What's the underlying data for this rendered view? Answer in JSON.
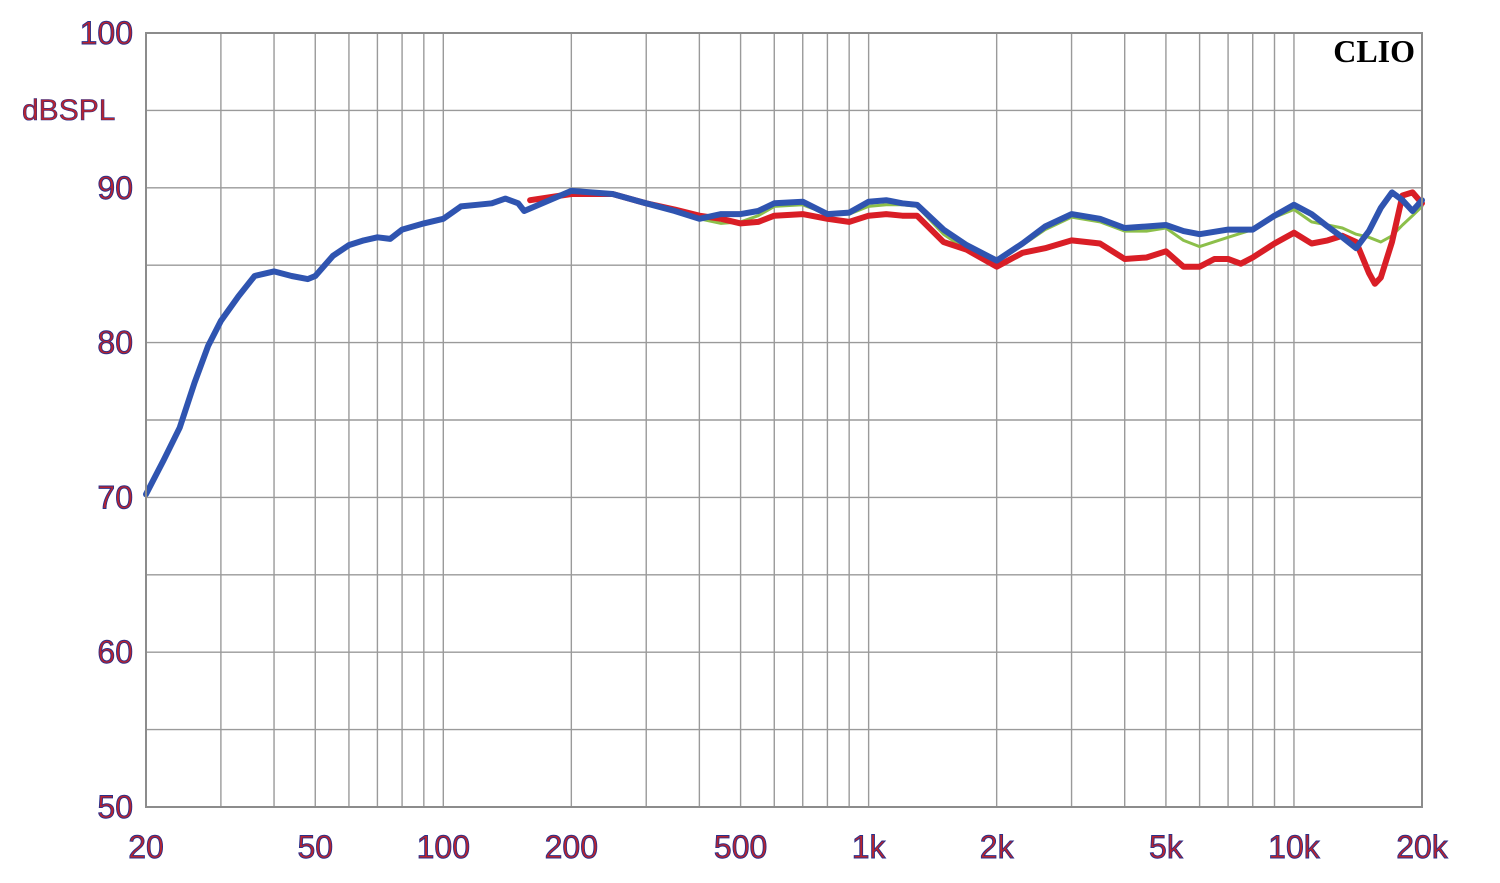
{
  "chart_data": {
    "type": "line",
    "title": "",
    "brand": "CLIO",
    "ylabel": "dBSPL",
    "xlabel": "",
    "x_scale": "log",
    "xlim": [
      20,
      20000
    ],
    "ylim": [
      50,
      100
    ],
    "grid": true,
    "y_ticks": [
      {
        "value": 100,
        "label": "100"
      },
      {
        "value": 90,
        "label": "90"
      },
      {
        "value": 80,
        "label": "80"
      },
      {
        "value": 70,
        "label": "70"
      },
      {
        "value": 60,
        "label": "60"
      },
      {
        "value": 50,
        "label": "50"
      }
    ],
    "x_ticks": [
      {
        "value": 20,
        "label": "20"
      },
      {
        "value": 50,
        "label": "50"
      },
      {
        "value": 100,
        "label": "100"
      },
      {
        "value": 200,
        "label": "200"
      },
      {
        "value": 500,
        "label": "500"
      },
      {
        "value": 1000,
        "label": "1k"
      },
      {
        "value": 2000,
        "label": "2k"
      },
      {
        "value": 5000,
        "label": "5k"
      },
      {
        "value": 10000,
        "label": "10k"
      },
      {
        "value": 20000,
        "label": "20k"
      }
    ],
    "series": [
      {
        "color": "#8cbf4a",
        "width": 3,
        "points": [
          [
            160,
            89.2
          ],
          [
            200,
            89.7
          ],
          [
            250,
            89.6
          ],
          [
            300,
            89.0
          ],
          [
            350,
            88.6
          ],
          [
            400,
            88.0
          ],
          [
            450,
            87.7
          ],
          [
            500,
            87.8
          ],
          [
            550,
            88.2
          ],
          [
            600,
            88.8
          ],
          [
            700,
            88.9
          ],
          [
            800,
            88.3
          ],
          [
            900,
            88.3
          ],
          [
            1000,
            88.8
          ],
          [
            1100,
            88.9
          ],
          [
            1200,
            88.9
          ],
          [
            1300,
            88.8
          ],
          [
            1500,
            87.0
          ],
          [
            1700,
            86.0
          ],
          [
            2000,
            85.2
          ],
          [
            2300,
            86.3
          ],
          [
            2600,
            87.3
          ],
          [
            3000,
            88.1
          ],
          [
            3500,
            87.8
          ],
          [
            4000,
            87.2
          ],
          [
            4500,
            87.2
          ],
          [
            5000,
            87.4
          ],
          [
            5500,
            86.6
          ],
          [
            6000,
            86.2
          ],
          [
            7000,
            86.8
          ],
          [
            8000,
            87.3
          ],
          [
            9000,
            88.1
          ],
          [
            10000,
            88.6
          ],
          [
            11000,
            87.8
          ],
          [
            12000,
            87.6
          ],
          [
            13000,
            87.4
          ],
          [
            14000,
            87.0
          ],
          [
            15000,
            86.8
          ],
          [
            16000,
            86.5
          ],
          [
            17000,
            86.9
          ],
          [
            18000,
            87.6
          ],
          [
            19000,
            88.2
          ],
          [
            20000,
            88.8
          ]
        ]
      },
      {
        "color": "#d91e26",
        "width": 6,
        "points": [
          [
            160,
            89.2
          ],
          [
            200,
            89.6
          ],
          [
            250,
            89.6
          ],
          [
            300,
            89.0
          ],
          [
            350,
            88.6
          ],
          [
            400,
            88.2
          ],
          [
            450,
            88.0
          ],
          [
            500,
            87.7
          ],
          [
            550,
            87.8
          ],
          [
            600,
            88.2
          ],
          [
            700,
            88.3
          ],
          [
            800,
            88.0
          ],
          [
            900,
            87.8
          ],
          [
            1000,
            88.2
          ],
          [
            1100,
            88.3
          ],
          [
            1200,
            88.2
          ],
          [
            1300,
            88.2
          ],
          [
            1500,
            86.5
          ],
          [
            1700,
            86.0
          ],
          [
            2000,
            84.9
          ],
          [
            2300,
            85.8
          ],
          [
            2600,
            86.1
          ],
          [
            3000,
            86.6
          ],
          [
            3500,
            86.4
          ],
          [
            4000,
            85.4
          ],
          [
            4500,
            85.5
          ],
          [
            5000,
            85.9
          ],
          [
            5500,
            84.9
          ],
          [
            6000,
            84.9
          ],
          [
            6500,
            85.4
          ],
          [
            7000,
            85.4
          ],
          [
            7500,
            85.1
          ],
          [
            8000,
            85.5
          ],
          [
            9000,
            86.4
          ],
          [
            10000,
            87.1
          ],
          [
            11000,
            86.4
          ],
          [
            12000,
            86.6
          ],
          [
            13000,
            86.9
          ],
          [
            14000,
            86.5
          ],
          [
            15000,
            84.5
          ],
          [
            15500,
            83.8
          ],
          [
            16000,
            84.2
          ],
          [
            17000,
            86.5
          ],
          [
            18000,
            89.5
          ],
          [
            19000,
            89.7
          ],
          [
            20000,
            89.0
          ]
        ]
      },
      {
        "color": "#2f54b0",
        "width": 6,
        "points": [
          [
            20,
            70.2
          ],
          [
            22,
            72.4
          ],
          [
            24,
            74.5
          ],
          [
            26,
            77.4
          ],
          [
            28,
            79.8
          ],
          [
            30,
            81.4
          ],
          [
            33,
            83.0
          ],
          [
            36,
            84.3
          ],
          [
            40,
            84.6
          ],
          [
            44,
            84.3
          ],
          [
            48,
            84.1
          ],
          [
            50,
            84.3
          ],
          [
            55,
            85.6
          ],
          [
            60,
            86.3
          ],
          [
            65,
            86.6
          ],
          [
            70,
            86.8
          ],
          [
            75,
            86.7
          ],
          [
            80,
            87.3
          ],
          [
            90,
            87.7
          ],
          [
            100,
            88.0
          ],
          [
            110,
            88.8
          ],
          [
            120,
            88.9
          ],
          [
            130,
            89.0
          ],
          [
            140,
            89.3
          ],
          [
            150,
            89.0
          ],
          [
            155,
            88.5
          ],
          [
            200,
            89.8
          ],
          [
            250,
            89.6
          ],
          [
            300,
            89.0
          ],
          [
            350,
            88.5
          ],
          [
            400,
            88.0
          ],
          [
            450,
            88.3
          ],
          [
            500,
            88.3
          ],
          [
            550,
            88.5
          ],
          [
            600,
            89.0
          ],
          [
            700,
            89.1
          ],
          [
            800,
            88.3
          ],
          [
            900,
            88.4
          ],
          [
            1000,
            89.1
          ],
          [
            1100,
            89.2
          ],
          [
            1200,
            89.0
          ],
          [
            1300,
            88.9
          ],
          [
            1500,
            87.3
          ],
          [
            1700,
            86.3
          ],
          [
            2000,
            85.3
          ],
          [
            2300,
            86.4
          ],
          [
            2600,
            87.5
          ],
          [
            3000,
            88.3
          ],
          [
            3500,
            88.0
          ],
          [
            4000,
            87.4
          ],
          [
            4500,
            87.5
          ],
          [
            5000,
            87.6
          ],
          [
            5500,
            87.2
          ],
          [
            6000,
            87.0
          ],
          [
            7000,
            87.3
          ],
          [
            8000,
            87.3
          ],
          [
            9000,
            88.2
          ],
          [
            10000,
            88.9
          ],
          [
            11000,
            88.3
          ],
          [
            12000,
            87.5
          ],
          [
            13000,
            86.8
          ],
          [
            14000,
            86.1
          ],
          [
            15000,
            87.2
          ],
          [
            16000,
            88.7
          ],
          [
            17000,
            89.7
          ],
          [
            18000,
            89.2
          ],
          [
            19000,
            88.5
          ],
          [
            20000,
            89.2
          ]
        ]
      }
    ]
  }
}
